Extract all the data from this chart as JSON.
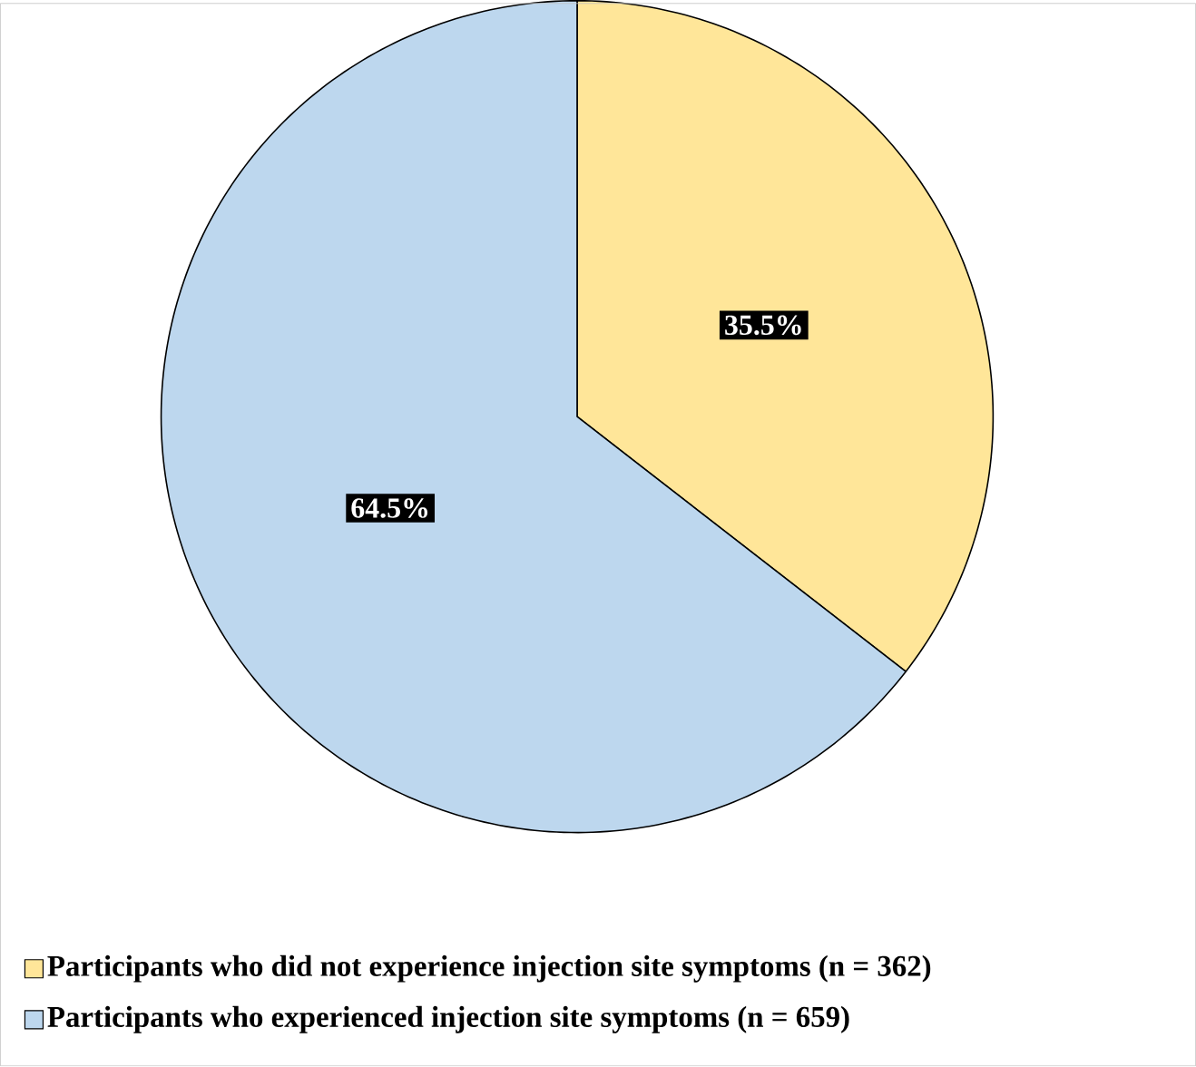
{
  "chart_data": {
    "type": "pie",
    "categories": [
      "Participants who did not experience injection site symptoms (n = 362)",
      "Participants who experienced injection site symptoms   (n = 659)"
    ],
    "values": [
      35.5,
      64.5
    ],
    "colors": [
      "#ffe699",
      "#bdd7ee"
    ],
    "value_labels": [
      "35.5%",
      "64.5%"
    ],
    "legend": "bottom"
  }
}
